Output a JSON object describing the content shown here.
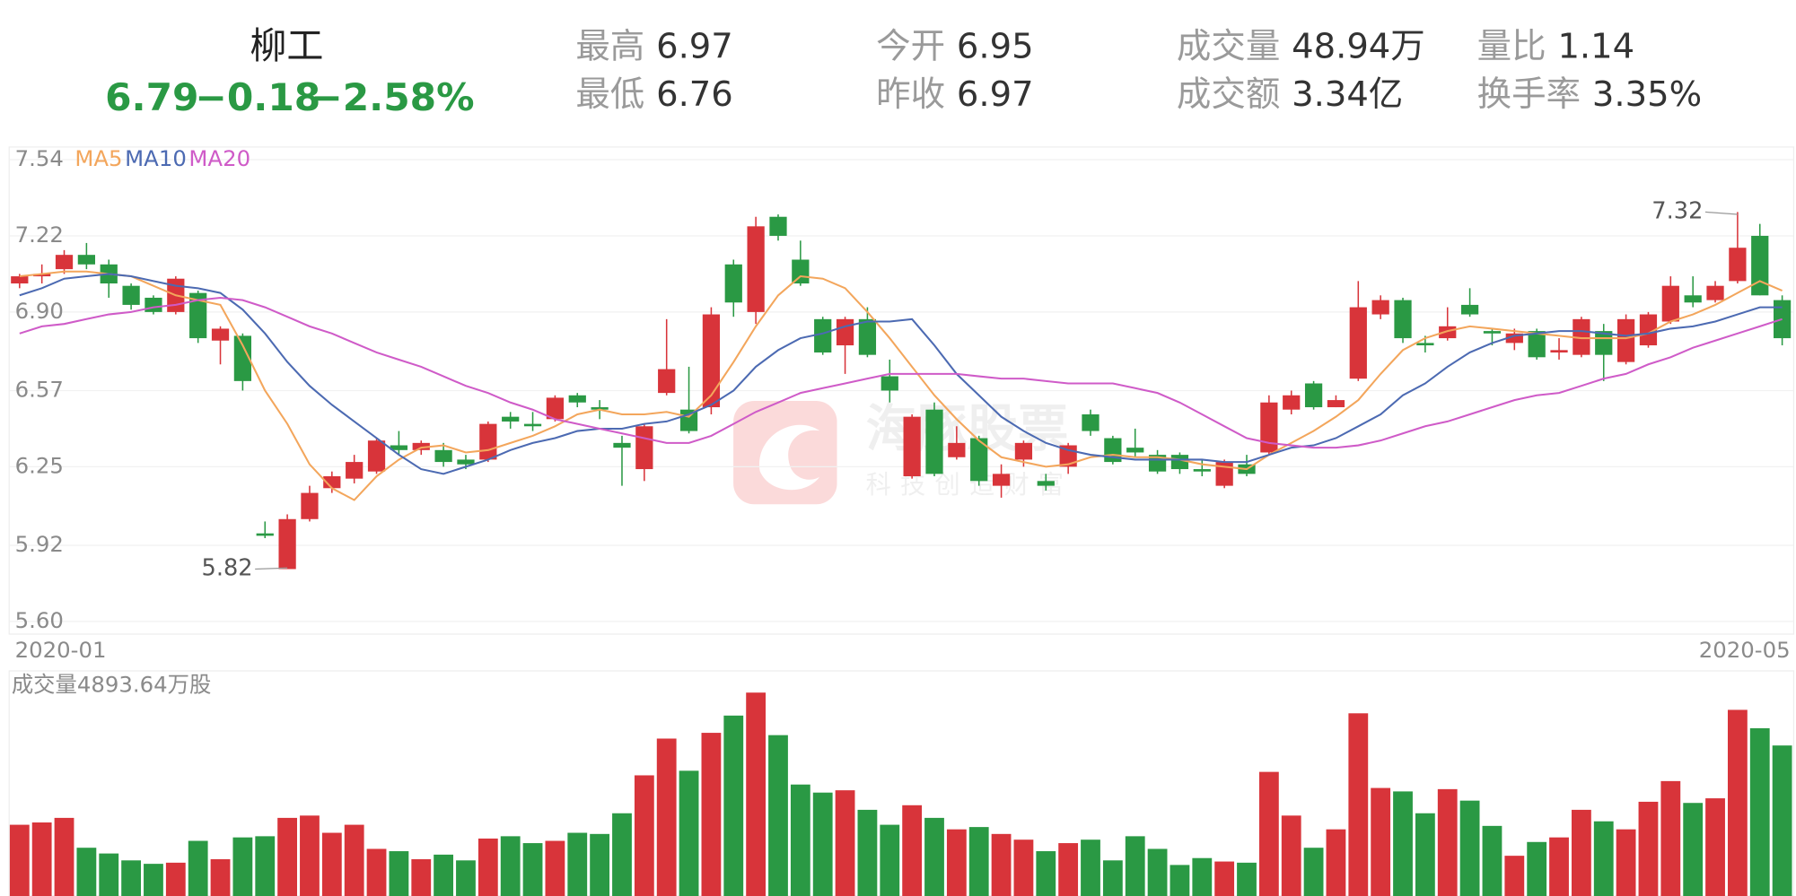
{
  "header": {
    "name": "柳工",
    "price": "6.79",
    "change": "−0.18",
    "percent": "−2.58%",
    "stats": [
      {
        "label": "最高",
        "value": "6.97"
      },
      {
        "label": "最低",
        "value": "6.76"
      },
      {
        "label": "今开",
        "value": "6.95"
      },
      {
        "label": "昨收",
        "value": "6.97"
      },
      {
        "label": "成交量",
        "value": "48.94万"
      },
      {
        "label": "成交额",
        "value": "3.34亿"
      },
      {
        "label": "量比",
        "value": "1.14"
      },
      {
        "label": "换手率",
        "value": "3.35%"
      }
    ]
  },
  "watermark": {
    "name": "海豚股票",
    "slogan": "科技创造财富"
  },
  "chart_data": {
    "type": "candlestick",
    "categories": [
      "2020-01",
      null,
      null,
      null,
      null,
      null,
      null,
      null,
      null,
      null,
      null,
      null,
      null,
      null,
      null,
      null,
      null,
      null,
      null,
      null,
      null,
      null,
      null,
      null,
      null,
      null,
      null,
      null,
      null,
      null,
      null,
      null,
      null,
      null,
      null,
      null,
      null,
      null,
      null,
      null,
      null,
      null,
      null,
      null,
      null,
      null,
      null,
      null,
      null,
      null,
      null,
      null,
      null,
      null,
      null,
      null,
      null,
      null,
      null,
      null,
      null,
      null,
      null,
      null,
      null,
      null,
      null,
      null,
      null,
      null,
      null,
      null,
      null,
      null,
      null,
      null,
      null,
      null,
      null,
      "2020-05"
    ],
    "open": [
      7.02,
      7.05,
      7.08,
      7.14,
      7.1,
      7.01,
      6.96,
      6.9,
      6.98,
      6.78,
      6.8,
      5.97,
      5.82,
      6.03,
      6.16,
      6.2,
      6.23,
      6.34,
      6.32,
      6.32,
      6.28,
      6.28,
      6.46,
      6.43,
      6.45,
      6.55,
      6.5,
      6.35,
      6.24,
      6.56,
      6.49,
      6.5,
      7.1,
      6.9,
      7.3,
      7.12,
      6.87,
      6.76,
      6.87,
      6.63,
      6.21,
      6.49,
      6.29,
      6.37,
      6.17,
      6.28,
      6.19,
      6.25,
      6.47,
      6.37,
      6.33,
      6.3,
      6.3,
      6.24,
      6.17,
      6.26,
      6.31,
      6.49,
      6.6,
      6.5,
      6.62,
      6.89,
      6.95,
      6.77,
      6.79,
      6.93,
      6.82,
      6.77,
      6.82,
      6.73,
      6.72,
      6.82,
      6.69,
      6.76,
      6.86,
      6.97,
      6.95,
      7.03,
      7.22,
      6.95
    ],
    "high": [
      7.06,
      7.1,
      7.16,
      7.19,
      7.12,
      7.02,
      6.97,
      7.05,
      6.99,
      6.84,
      6.81,
      6.02,
      6.05,
      6.17,
      6.23,
      6.3,
      6.37,
      6.4,
      6.36,
      6.35,
      6.3,
      6.44,
      6.48,
      6.48,
      6.55,
      6.56,
      6.53,
      6.38,
      6.43,
      6.87,
      6.67,
      6.92,
      7.12,
      7.3,
      7.31,
      7.2,
      6.88,
      6.88,
      6.92,
      6.7,
      6.47,
      6.52,
      6.42,
      6.38,
      6.26,
      6.36,
      6.22,
      6.35,
      6.49,
      6.38,
      6.41,
      6.32,
      6.31,
      6.28,
      6.28,
      6.3,
      6.55,
      6.57,
      6.61,
      6.55,
      7.03,
      6.97,
      6.96,
      6.8,
      6.92,
      7.0,
      6.83,
      6.83,
      6.83,
      6.79,
      6.88,
      6.85,
      6.89,
      6.9,
      7.05,
      7.05,
      7.03,
      7.32,
      7.27,
      6.97
    ],
    "low": [
      7.0,
      7.02,
      7.06,
      7.08,
      6.96,
      6.91,
      6.89,
      6.89,
      6.77,
      6.68,
      6.57,
      5.95,
      5.82,
      6.02,
      6.14,
      6.18,
      6.22,
      6.3,
      6.3,
      6.25,
      6.24,
      6.27,
      6.41,
      6.4,
      6.44,
      6.5,
      6.45,
      6.17,
      6.19,
      6.55,
      6.39,
      6.47,
      6.88,
      6.85,
      7.2,
      7.01,
      6.72,
      6.64,
      6.71,
      6.52,
      6.2,
      6.21,
      6.28,
      6.17,
      6.12,
      6.25,
      6.15,
      6.22,
      6.38,
      6.26,
      6.29,
      6.22,
      6.22,
      6.21,
      6.16,
      6.21,
      6.3,
      6.47,
      6.49,
      6.5,
      6.61,
      6.87,
      6.77,
      6.73,
      6.78,
      6.88,
      6.76,
      6.74,
      6.7,
      6.7,
      6.71,
      6.61,
      6.68,
      6.75,
      6.85,
      6.92,
      6.94,
      7.02,
      6.97,
      6.76
    ],
    "close": [
      7.05,
      7.06,
      7.14,
      7.1,
      7.02,
      6.93,
      6.9,
      7.04,
      6.79,
      6.83,
      6.61,
      5.96,
      6.03,
      6.14,
      6.21,
      6.27,
      6.36,
      6.32,
      6.35,
      6.27,
      6.26,
      6.43,
      6.44,
      6.42,
      6.54,
      6.52,
      6.49,
      6.33,
      6.42,
      6.66,
      6.4,
      6.89,
      6.94,
      7.26,
      7.22,
      7.02,
      6.73,
      6.87,
      6.72,
      6.57,
      6.46,
      6.22,
      6.35,
      6.19,
      6.22,
      6.35,
      6.17,
      6.34,
      6.4,
      6.27,
      6.31,
      6.23,
      6.24,
      6.23,
      6.27,
      6.22,
      6.52,
      6.55,
      6.5,
      6.53,
      6.92,
      6.95,
      6.79,
      6.76,
      6.84,
      6.89,
      6.81,
      6.81,
      6.71,
      6.74,
      6.87,
      6.72,
      6.87,
      6.89,
      7.01,
      6.94,
      7.01,
      7.17,
      6.97,
      6.79
    ],
    "up_color": "#d8343a",
    "down_color": "#2a9944",
    "ylim": [
      5.6,
      7.54
    ],
    "yticks": [
      7.54,
      7.22,
      {
        "value": 6.9,
        "label": "6.90"
      },
      6.57,
      6.25,
      5.92,
      {
        "value": 5.6,
        "label": "5.60"
      }
    ],
    "grid": true,
    "series": [
      {
        "name": "MA5",
        "color": "#f3a65c",
        "values": [
          7.05,
          7.06,
          7.07,
          7.07,
          7.06,
          7.05,
          7.01,
          6.97,
          6.95,
          6.93,
          6.76,
          6.57,
          6.43,
          6.26,
          6.16,
          6.11,
          6.21,
          6.28,
          6.33,
          6.34,
          6.31,
          6.32,
          6.35,
          6.38,
          6.42,
          6.47,
          6.49,
          6.47,
          6.47,
          6.48,
          6.46,
          6.55,
          6.69,
          6.84,
          6.97,
          7.05,
          7.04,
          7.0,
          6.9,
          6.79,
          6.67,
          6.55,
          6.45,
          6.36,
          6.29,
          6.27,
          6.25,
          6.26,
          6.29,
          6.3,
          6.29,
          6.29,
          6.28,
          6.26,
          6.25,
          6.24,
          6.3,
          6.35,
          6.4,
          6.46,
          6.53,
          6.64,
          6.74,
          6.79,
          6.82,
          6.84,
          6.83,
          6.82,
          6.81,
          6.8,
          6.79,
          6.79,
          6.79,
          6.81,
          6.86,
          6.89,
          6.93,
          6.98,
          7.03,
          6.99
        ]
      },
      {
        "name": "MA10",
        "color": "#4c6ab2",
        "values": [
          6.97,
          7.0,
          7.04,
          7.05,
          7.06,
          7.05,
          7.03,
          7.01,
          7.0,
          6.98,
          6.91,
          6.81,
          6.69,
          6.59,
          6.51,
          6.44,
          6.37,
          6.3,
          6.24,
          6.22,
          6.25,
          6.28,
          6.32,
          6.35,
          6.37,
          6.4,
          6.41,
          6.41,
          6.43,
          6.44,
          6.47,
          6.51,
          6.57,
          6.67,
          6.74,
          6.79,
          6.81,
          6.84,
          6.86,
          6.86,
          6.87,
          6.76,
          6.64,
          6.55,
          6.46,
          6.4,
          6.35,
          6.32,
          6.3,
          6.29,
          6.28,
          6.28,
          6.28,
          6.28,
          6.27,
          6.27,
          6.3,
          6.33,
          6.34,
          6.37,
          6.42,
          6.47,
          6.55,
          6.6,
          6.67,
          6.73,
          6.77,
          6.8,
          6.81,
          6.82,
          6.82,
          6.81,
          6.8,
          6.81,
          6.83,
          6.84,
          6.86,
          6.89,
          6.92,
          6.92
        ]
      },
      {
        "name": "MA20",
        "color": "#cf5bc8",
        "values": [
          6.81,
          6.84,
          6.85,
          6.87,
          6.89,
          6.9,
          6.92,
          6.93,
          6.95,
          6.96,
          6.95,
          6.92,
          6.88,
          6.84,
          6.81,
          6.77,
          6.73,
          6.7,
          6.67,
          6.63,
          6.59,
          6.56,
          6.52,
          6.49,
          6.45,
          6.43,
          6.41,
          6.39,
          6.37,
          6.35,
          6.35,
          6.38,
          6.43,
          6.48,
          6.52,
          6.56,
          6.58,
          6.6,
          6.62,
          6.64,
          6.64,
          6.64,
          6.64,
          6.63,
          6.62,
          6.62,
          6.61,
          6.6,
          6.6,
          6.6,
          6.58,
          6.56,
          6.52,
          6.47,
          6.42,
          6.37,
          6.35,
          6.34,
          6.33,
          6.33,
          6.34,
          6.36,
          6.39,
          6.42,
          6.44,
          6.47,
          6.5,
          6.53,
          6.55,
          6.56,
          6.59,
          6.62,
          6.64,
          6.68,
          6.71,
          6.75,
          6.78,
          6.81,
          6.84,
          6.87
        ]
      }
    ],
    "volume": {
      "title": "成交量4893.64万股",
      "ylim": [
        0,
        7320
      ],
      "values": [
        2316,
        2391,
        2540,
        1569,
        1382,
        1158,
        1046,
        1083,
        1793,
        1196,
        1905,
        1943,
        2540,
        2615,
        2055,
        2316,
        1532,
        1457,
        1196,
        1345,
        1158,
        1868,
        1943,
        1719,
        1793,
        2055,
        2017,
        2690,
        3923,
        5118,
        4072,
        5305,
        5866,
        6613,
        5230,
        3624,
        3362,
        3437,
        2802,
        2316,
        2951,
        2540,
        2167,
        2242,
        2017,
        1831,
        1457,
        1719,
        1831,
        1158,
        1943,
        1532,
        1009,
        1233,
        1121,
        1083,
        4035,
        2615,
        1569,
        2167,
        5940,
        3512,
        3400,
        2690,
        3474,
        3101,
        2279,
        1308,
        1756,
        1905,
        2802,
        2428,
        2167,
        3064,
        3736,
        3026,
        3176,
        6052,
        5455,
        4893.64
      ]
    }
  }
}
